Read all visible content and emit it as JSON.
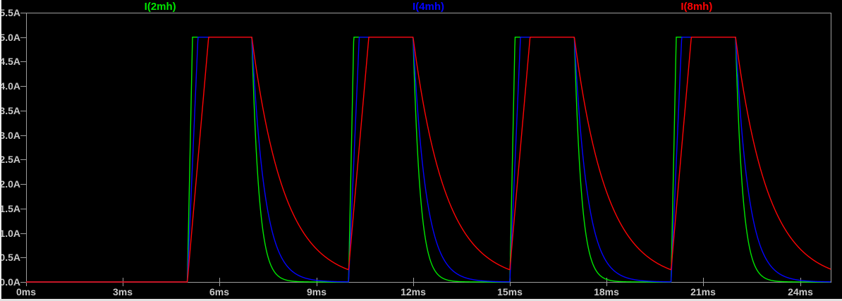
{
  "window": {
    "kind": "waveform-viewer-pane",
    "background": "#000000",
    "edge_border_color": "#e8e8e8"
  },
  "chart_data": {
    "type": "line",
    "title": "",
    "x_unit": "ms",
    "y_unit": "A",
    "xlim": [
      0,
      24.95
    ],
    "ylim": [
      0,
      5.5
    ],
    "grid": false,
    "background": "#000000",
    "frame_color": "#9e9e9e",
    "tick_text_color": "#c8c8c8",
    "legend_position": "top-evenly-spaced",
    "x_ticks": [
      {
        "v": 0,
        "label": "0ms"
      },
      {
        "v": 3,
        "label": "3ms"
      },
      {
        "v": 6,
        "label": "6ms"
      },
      {
        "v": 9,
        "label": "9ms"
      },
      {
        "v": 12,
        "label": "12ms"
      },
      {
        "v": 15,
        "label": "15ms"
      },
      {
        "v": 18,
        "label": "18ms"
      },
      {
        "v": 21,
        "label": "21ms"
      },
      {
        "v": 24,
        "label": "24ms"
      }
    ],
    "y_ticks": [
      {
        "v": 0.0,
        "label": "0.0A"
      },
      {
        "v": 0.5,
        "label": "0.5A"
      },
      {
        "v": 1.0,
        "label": "1.0A"
      },
      {
        "v": 1.5,
        "label": "1.5A"
      },
      {
        "v": 2.0,
        "label": "2.0A"
      },
      {
        "v": 2.5,
        "label": "2.5A"
      },
      {
        "v": 3.0,
        "label": "3.0A"
      },
      {
        "v": 3.5,
        "label": "3.5A"
      },
      {
        "v": 4.0,
        "label": "4.0A"
      },
      {
        "v": 4.5,
        "label": "4.5A"
      },
      {
        "v": 5.0,
        "label": "5.0A"
      },
      {
        "v": 5.5,
        "label": "5.5A"
      }
    ],
    "series": [
      {
        "name": "I(2mh)",
        "color": "#00e600",
        "rise_time_ms": 0.16,
        "decay_tau_ms": 0.22
      },
      {
        "name": "I(4mh)",
        "color": "#0404ff",
        "rise_time_ms": 0.33,
        "decay_tau_ms": 0.4
      },
      {
        "name": "I(8mh)",
        "color": "#ff0404",
        "rise_time_ms": 0.66,
        "decay_tau_ms": 1.0
      }
    ],
    "pulse_model": {
      "description": "periodic inductor-current pulses: linear ramp up to amplitude, flat top until on_time after pulse start, then exponential decay; red trace never fully decays between pulses (~0.25A residual)",
      "amplitude_A": 5.0,
      "initial_A": 0.0,
      "first_rise_ms": 5.0,
      "period_ms": 5.0,
      "on_time_ms": 2.0,
      "pulse_count": 4
    },
    "draw_order_note": "green drawn first, then blue, red drawn on top (shared flat top appears red)"
  }
}
